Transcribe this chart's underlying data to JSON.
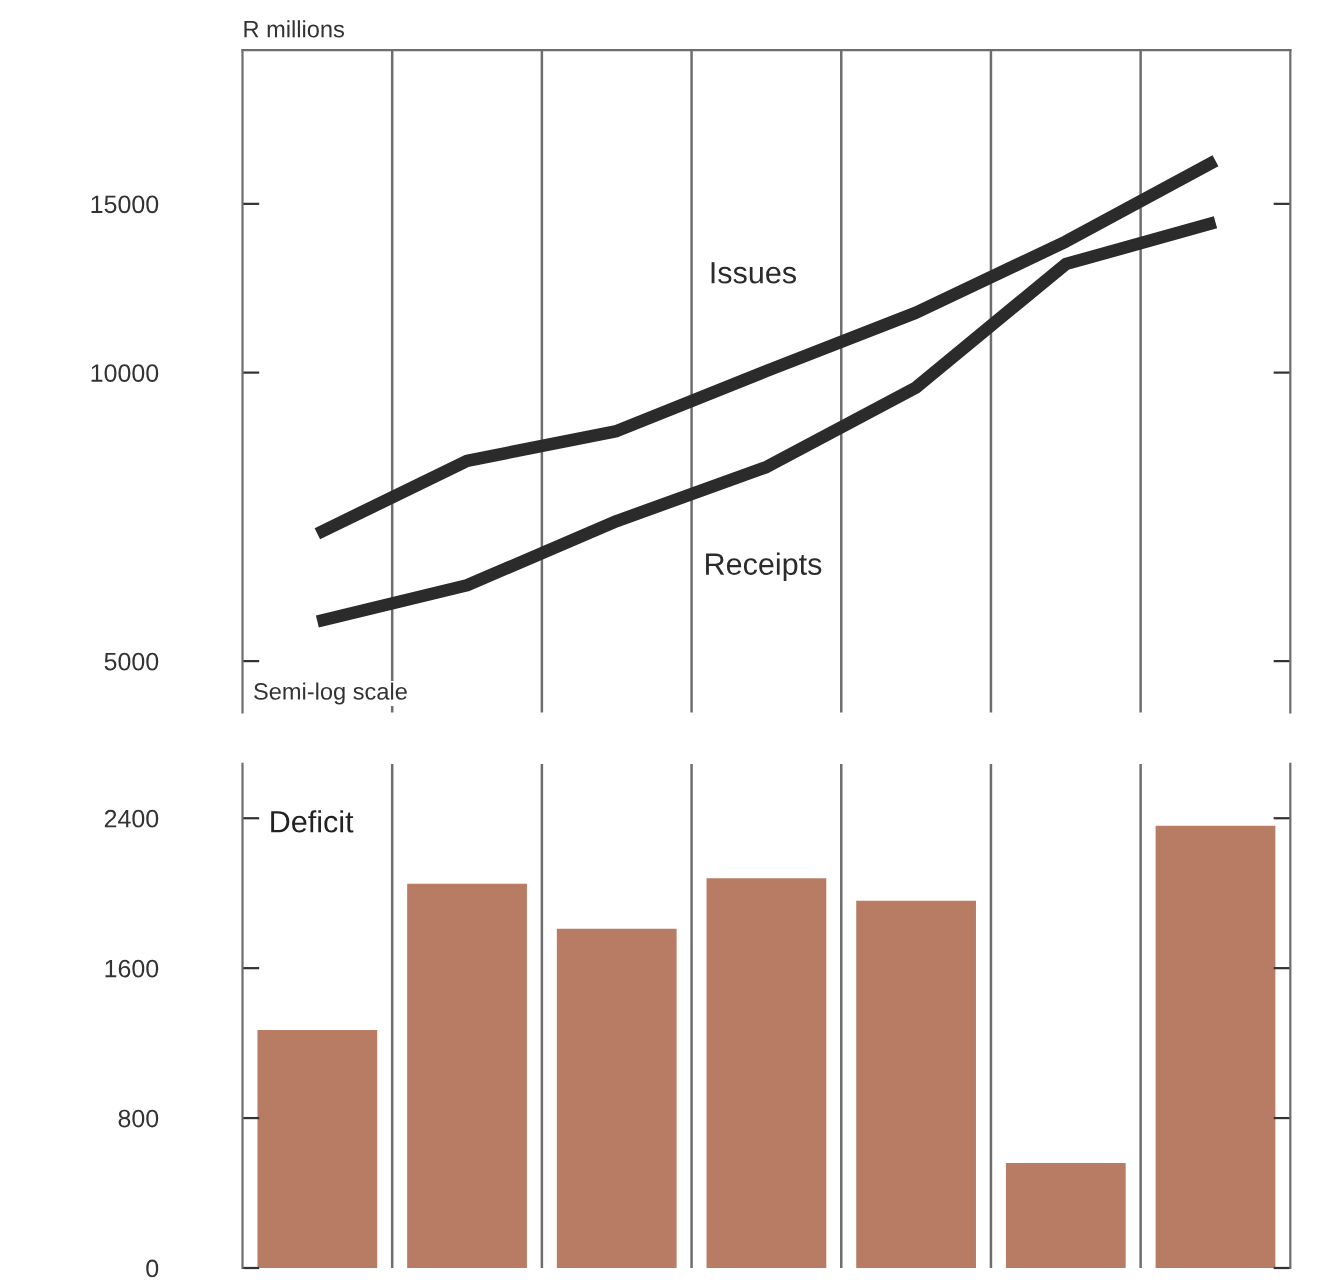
{
  "chart_data": [
    {
      "type": "line",
      "ylabel": "R millions",
      "log": "y",
      "categories": [
        null,
        null,
        null,
        null,
        null,
        null,
        null
      ],
      "series": [
        {
          "name": "Issues",
          "color": "#2b2b2b",
          "values": [
            6790,
            8090,
            8690,
            10040,
            11550,
            13700,
            16640
          ]
        },
        {
          "name": "Receipts",
          "color": "#2b2b2b",
          "values": [
            5500,
            6000,
            7000,
            7970,
            9650,
            12980,
            14350
          ]
        }
      ],
      "ylim": [
        4420,
        21700
      ],
      "yticks": [
        5000,
        10000,
        15000
      ],
      "grid": "x",
      "tick_labels": "y",
      "annotations": [
        "Semi-log scale"
      ]
    },
    {
      "type": "bar",
      "categories": [
        null,
        null,
        null,
        null,
        null,
        null,
        null
      ],
      "series": [
        {
          "name": "Deficit",
          "color": "#b87b63",
          "values": [
            1270,
            2050,
            1810,
            2080,
            1960,
            560,
            2360
          ]
        }
      ],
      "ylim": [
        0,
        2690
      ],
      "yticks": [
        0,
        800,
        1600,
        2400
      ],
      "grid": "x",
      "tick_labels": "y"
    }
  ]
}
